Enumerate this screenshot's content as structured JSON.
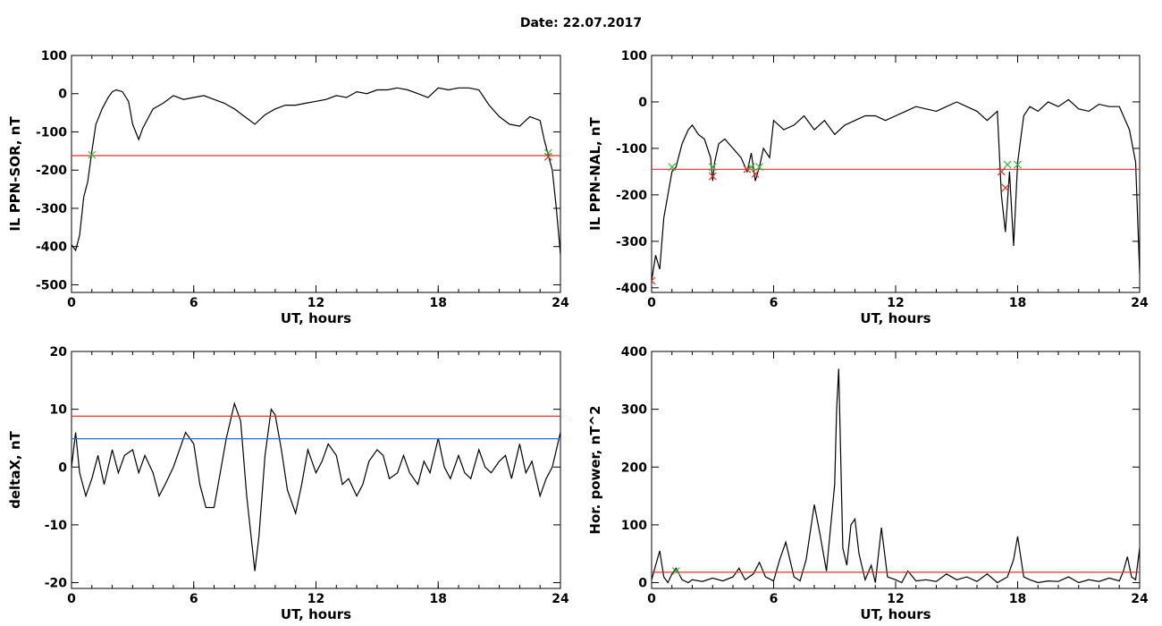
{
  "figure": {
    "title": "Date:  22.07.2017"
  },
  "colors": {
    "trace": "#000000",
    "threshold": "#e0302a",
    "blue_threshold": "#1f6fcf",
    "green_marker": "#33bb33",
    "red_marker": "#dd2222",
    "blue_trace": "#1f6fcf"
  },
  "chart_data": [
    {
      "type": "line",
      "xlabel": "UT, hours",
      "ylabel": "IL PPN-SOR, nT",
      "xlim": [
        0,
        24
      ],
      "ylim": [
        -520,
        100
      ],
      "xticks": [
        "0",
        "6",
        "12",
        "18",
        "24"
      ],
      "yticks": [
        "100",
        "0",
        "-100",
        "-200",
        "-300",
        "-400",
        "-500"
      ],
      "ytick_values": [
        100,
        0,
        -100,
        -200,
        -300,
        -400,
        -500
      ],
      "thresholds": [
        {
          "y": -162,
          "color": "red"
        }
      ],
      "series": [
        {
          "x": [
            0,
            0.2,
            0.4,
            0.6,
            0.8,
            1.0,
            1.2,
            1.5,
            1.8,
            2.0,
            2.2,
            2.5,
            2.8,
            3.0,
            3.3,
            3.5,
            3.8,
            4.0,
            4.5,
            5.0,
            5.5,
            6.0,
            6.5,
            7.0,
            7.5,
            8.0,
            8.5,
            9.0,
            9.5,
            10.0,
            10.5,
            11.0,
            11.5,
            12.0,
            12.5,
            13.0,
            13.5,
            14.0,
            14.5,
            15.0,
            15.5,
            16.0,
            16.5,
            17.0,
            17.5,
            18.0,
            18.5,
            19.0,
            19.5,
            20.0,
            20.5,
            21.0,
            21.5,
            22.0,
            22.5,
            23.0,
            23.2,
            23.4,
            23.6,
            23.8,
            24.0
          ],
          "y": [
            -395,
            -410,
            -370,
            -270,
            -230,
            -150,
            -80,
            -40,
            -10,
            5,
            10,
            5,
            -20,
            -80,
            -120,
            -90,
            -60,
            -40,
            -25,
            -5,
            -15,
            -10,
            -5,
            -15,
            -25,
            -40,
            -60,
            -80,
            -55,
            -40,
            -30,
            -30,
            -25,
            -20,
            -15,
            -5,
            -10,
            5,
            0,
            10,
            10,
            15,
            10,
            0,
            -10,
            15,
            10,
            15,
            15,
            10,
            -30,
            -60,
            -80,
            -85,
            -60,
            -70,
            -120,
            -160,
            -200,
            -300,
            -420
          ]
        }
      ],
      "markers": [
        {
          "x": 1.0,
          "y": -160,
          "color": "green"
        },
        {
          "x": 23.4,
          "y": -165,
          "color": "red"
        },
        {
          "x": 23.4,
          "y": -155,
          "color": "green"
        }
      ]
    },
    {
      "type": "line",
      "xlabel": "UT, hours",
      "ylabel": "IL PPN-NAL, nT",
      "xlim": [
        0,
        24
      ],
      "ylim": [
        -410,
        100
      ],
      "xticks": [
        "0",
        "6",
        "12",
        "18",
        "24"
      ],
      "yticks": [
        "100",
        "0",
        "-100",
        "-200",
        "-300",
        "-400"
      ],
      "ytick_values": [
        100,
        0,
        -100,
        -200,
        -300,
        -400
      ],
      "thresholds": [
        {
          "y": -145,
          "color": "red"
        }
      ],
      "series": [
        {
          "x": [
            0,
            0.2,
            0.4,
            0.6,
            0.8,
            1.0,
            1.2,
            1.5,
            1.8,
            2.0,
            2.3,
            2.6,
            2.9,
            3.0,
            3.1,
            3.3,
            3.6,
            4.0,
            4.4,
            4.7,
            4.9,
            5.1,
            5.3,
            5.5,
            5.8,
            6.0,
            6.5,
            7.0,
            7.5,
            8.0,
            8.5,
            9.0,
            9.5,
            10.0,
            10.5,
            11.0,
            11.5,
            12.0,
            12.5,
            13.0,
            13.5,
            14.0,
            14.5,
            15.0,
            15.5,
            16.0,
            16.5,
            17.0,
            17.2,
            17.4,
            17.6,
            17.8,
            18.0,
            18.3,
            18.6,
            19.0,
            19.5,
            20.0,
            20.5,
            21.0,
            21.5,
            22.0,
            22.5,
            23.0,
            23.5,
            23.8,
            24.0
          ],
          "y": [
            -385,
            -330,
            -360,
            -250,
            -200,
            -150,
            -140,
            -90,
            -60,
            -50,
            -70,
            -80,
            -120,
            -170,
            -130,
            -90,
            -80,
            -100,
            -120,
            -150,
            -110,
            -170,
            -140,
            -100,
            -120,
            -40,
            -60,
            -50,
            -30,
            -60,
            -40,
            -70,
            -50,
            -40,
            -30,
            -30,
            -40,
            -30,
            -20,
            -10,
            -15,
            -20,
            -10,
            0,
            -10,
            -20,
            -40,
            -20,
            -200,
            -280,
            -150,
            -310,
            -130,
            -30,
            -10,
            -20,
            0,
            -10,
            5,
            -15,
            -20,
            -5,
            -10,
            -10,
            -60,
            -130,
            -370
          ]
        }
      ],
      "markers": [
        {
          "x": 0.0,
          "y": -385,
          "color": "red"
        },
        {
          "x": 1.0,
          "y": -140,
          "color": "green"
        },
        {
          "x": 3.0,
          "y": -160,
          "color": "red"
        },
        {
          "x": 3.0,
          "y": -140,
          "color": "green"
        },
        {
          "x": 4.7,
          "y": -145,
          "color": "red"
        },
        {
          "x": 4.9,
          "y": -140,
          "color": "green"
        },
        {
          "x": 5.1,
          "y": -155,
          "color": "red"
        },
        {
          "x": 5.3,
          "y": -140,
          "color": "green"
        },
        {
          "x": 17.2,
          "y": -150,
          "color": "red"
        },
        {
          "x": 17.4,
          "y": -185,
          "color": "red"
        },
        {
          "x": 17.5,
          "y": -135,
          "color": "green"
        },
        {
          "x": 18.0,
          "y": -135,
          "color": "green"
        }
      ]
    },
    {
      "type": "line",
      "xlabel": "UT, hours",
      "ylabel": "deltaX, nT",
      "xlim": [
        0,
        24
      ],
      "ylim": [
        -21,
        20
      ],
      "xticks": [
        "0",
        "6",
        "12",
        "18",
        "24"
      ],
      "yticks": [
        "20",
        "10",
        "0",
        "-10",
        "-20"
      ],
      "ytick_values": [
        20,
        10,
        0,
        -10,
        -20
      ],
      "thresholds": [
        {
          "y": 8.8,
          "color": "red"
        },
        {
          "y": 4.9,
          "color": "blue"
        }
      ],
      "series": [
        {
          "x": [
            0,
            0.2,
            0.4,
            0.7,
            1.0,
            1.3,
            1.6,
            2.0,
            2.3,
            2.6,
            3.0,
            3.3,
            3.6,
            4.0,
            4.3,
            4.6,
            5.0,
            5.3,
            5.6,
            6.0,
            6.3,
            6.6,
            7.0,
            7.3,
            7.6,
            8.0,
            8.3,
            8.6,
            9.0,
            9.2,
            9.5,
            9.8,
            10.0,
            10.3,
            10.6,
            11.0,
            11.3,
            11.6,
            12.0,
            12.3,
            12.6,
            13.0,
            13.3,
            13.6,
            14.0,
            14.3,
            14.6,
            15.0,
            15.3,
            15.6,
            16.0,
            16.3,
            16.6,
            17.0,
            17.3,
            17.6,
            18.0,
            18.3,
            18.6,
            19.0,
            19.3,
            19.6,
            20.0,
            20.3,
            20.6,
            21.0,
            21.3,
            21.6,
            22.0,
            22.3,
            22.6,
            23.0,
            23.3,
            23.6,
            24.0
          ],
          "y": [
            0,
            6,
            -1,
            -5,
            -2,
            2,
            -3,
            3,
            -1,
            2,
            3,
            -1,
            2,
            -1,
            -5,
            -3,
            0,
            3,
            6,
            4,
            -3,
            -7,
            -7,
            -1,
            5,
            11,
            8,
            -5,
            -18,
            -12,
            2,
            10,
            9,
            3,
            -4,
            -8,
            -3,
            3,
            -1,
            1,
            4,
            2,
            -3,
            -2,
            -5,
            -3,
            1,
            3,
            2,
            -2,
            -1,
            2,
            -1,
            -3,
            1,
            -1,
            5,
            0,
            -2,
            2,
            -1,
            -2,
            3,
            0,
            -1,
            1,
            2,
            -2,
            4,
            -1,
            1,
            -5,
            -2,
            0,
            6
          ]
        }
      ],
      "markers": []
    },
    {
      "type": "line",
      "xlabel": "UT, hours",
      "ylabel": "Hor. power, nT^2",
      "xlim": [
        0,
        24
      ],
      "ylim": [
        -10,
        400
      ],
      "xticks": [
        "0",
        "6",
        "12",
        "18",
        "24"
      ],
      "yticks": [
        "400",
        "300",
        "200",
        "100",
        "0"
      ],
      "ytick_values": [
        400,
        300,
        200,
        100,
        0
      ],
      "thresholds": [
        {
          "y": 18,
          "color": "red"
        }
      ],
      "series": [
        {
          "x": [
            0,
            0.2,
            0.4,
            0.6,
            0.8,
            1.0,
            1.2,
            1.5,
            1.8,
            2.0,
            2.5,
            3.0,
            3.5,
            4.0,
            4.3,
            4.6,
            5.0,
            5.3,
            5.6,
            6.0,
            6.3,
            6.6,
            7.0,
            7.3,
            7.6,
            8.0,
            8.3,
            8.6,
            9.0,
            9.1,
            9.2,
            9.4,
            9.6,
            9.8,
            10.0,
            10.2,
            10.5,
            10.8,
            11.0,
            11.3,
            11.6,
            12.0,
            12.3,
            12.6,
            13.0,
            13.5,
            14.0,
            14.5,
            15.0,
            15.5,
            16.0,
            16.5,
            17.0,
            17.5,
            17.8,
            18.0,
            18.3,
            18.6,
            19.0,
            19.5,
            20.0,
            20.5,
            21.0,
            21.5,
            22.0,
            22.5,
            23.0,
            23.2,
            23.4,
            23.6,
            23.8,
            24.0
          ],
          "y": [
            5,
            30,
            55,
            10,
            0,
            15,
            25,
            5,
            0,
            5,
            2,
            8,
            3,
            10,
            25,
            5,
            15,
            35,
            10,
            3,
            40,
            70,
            10,
            3,
            40,
            135,
            80,
            20,
            170,
            300,
            370,
            60,
            30,
            100,
            110,
            50,
            5,
            30,
            0,
            95,
            10,
            5,
            0,
            20,
            3,
            5,
            2,
            15,
            5,
            10,
            2,
            15,
            0,
            10,
            40,
            80,
            10,
            5,
            0,
            3,
            2,
            10,
            0,
            5,
            2,
            8,
            3,
            20,
            45,
            10,
            5,
            60
          ]
        }
      ],
      "markers": [
        {
          "x": 1.2,
          "y": 20,
          "color": "green"
        }
      ]
    }
  ]
}
